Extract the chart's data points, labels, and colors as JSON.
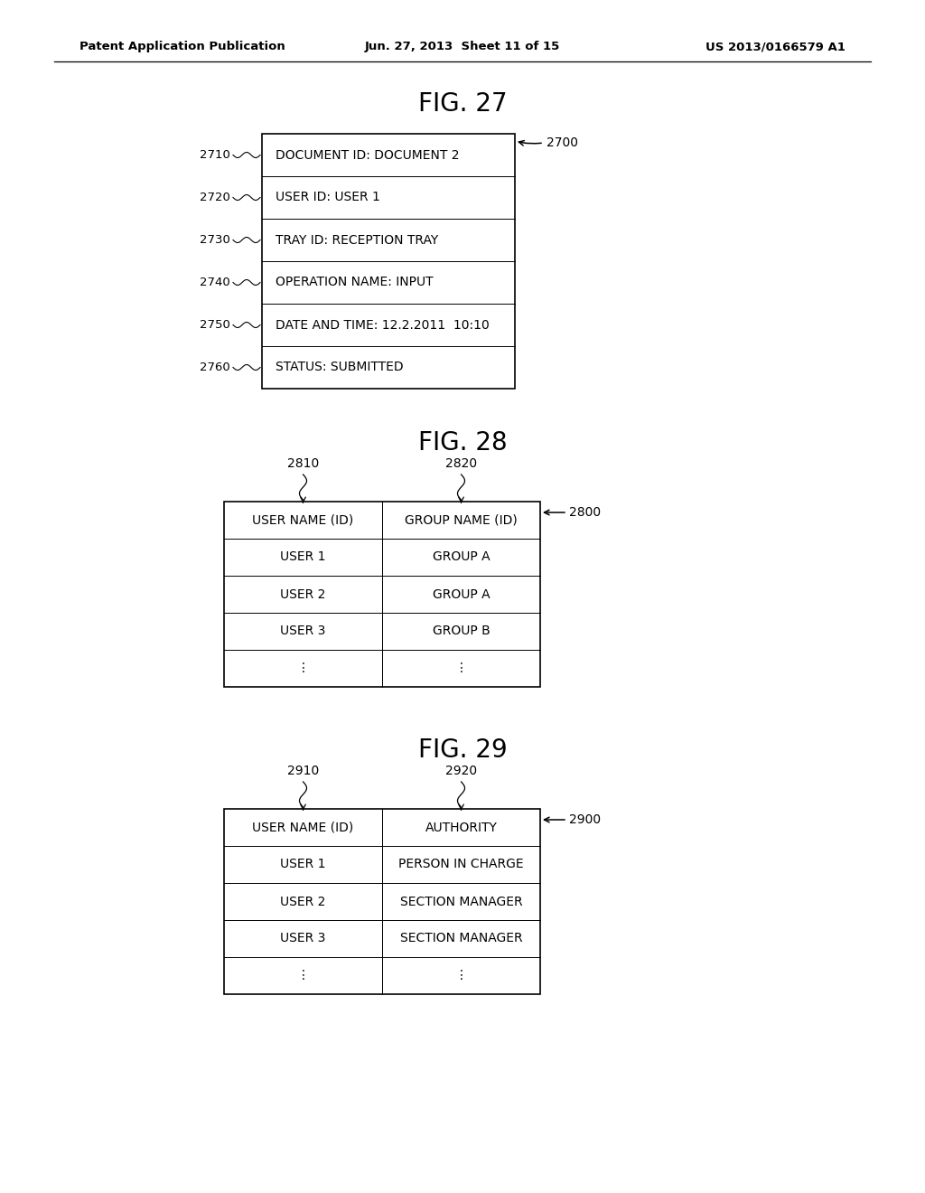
{
  "bg_color": "#ffffff",
  "header_left": "Patent Application Publication",
  "header_mid": "Jun. 27, 2013  Sheet 11 of 15",
  "header_right": "US 2013/0166579 A1",
  "fig27_title": "FIG. 27",
  "fig28_title": "FIG. 28",
  "fig29_title": "FIG. 29",
  "fig27_box": {
    "label": "2700",
    "rows": [
      {
        "label": "2710",
        "text": "DOCUMENT ID: DOCUMENT 2"
      },
      {
        "label": "2720",
        "text": "USER ID: USER 1"
      },
      {
        "label": "2730",
        "text": "TRAY ID: RECEPTION TRAY"
      },
      {
        "label": "2740",
        "text": "OPERATION NAME: INPUT"
      },
      {
        "label": "2750",
        "text": "DATE AND TIME: 12.2.2011  10:10"
      },
      {
        "label": "2760",
        "text": "STATUS: SUBMITTED"
      }
    ]
  },
  "fig28_table": {
    "label": "2800",
    "col1_label": "2810",
    "col2_label": "2820",
    "headers": [
      "USER NAME (ID)",
      "GROUP NAME (ID)"
    ],
    "rows": [
      [
        "USER 1",
        "GROUP A"
      ],
      [
        "USER 2",
        "GROUP A"
      ],
      [
        "USER 3",
        "GROUP B"
      ],
      [
        "⋮",
        "⋮"
      ]
    ]
  },
  "fig29_table": {
    "label": "2900",
    "col1_label": "2910",
    "col2_label": "2920",
    "headers": [
      "USER NAME (ID)",
      "AUTHORITY"
    ],
    "rows": [
      [
        "USER 1",
        "PERSON IN CHARGE"
      ],
      [
        "USER 2",
        "SECTION MANAGER"
      ],
      [
        "USER 3",
        "SECTION MANAGER"
      ],
      [
        "⋮",
        "⋮"
      ]
    ]
  }
}
